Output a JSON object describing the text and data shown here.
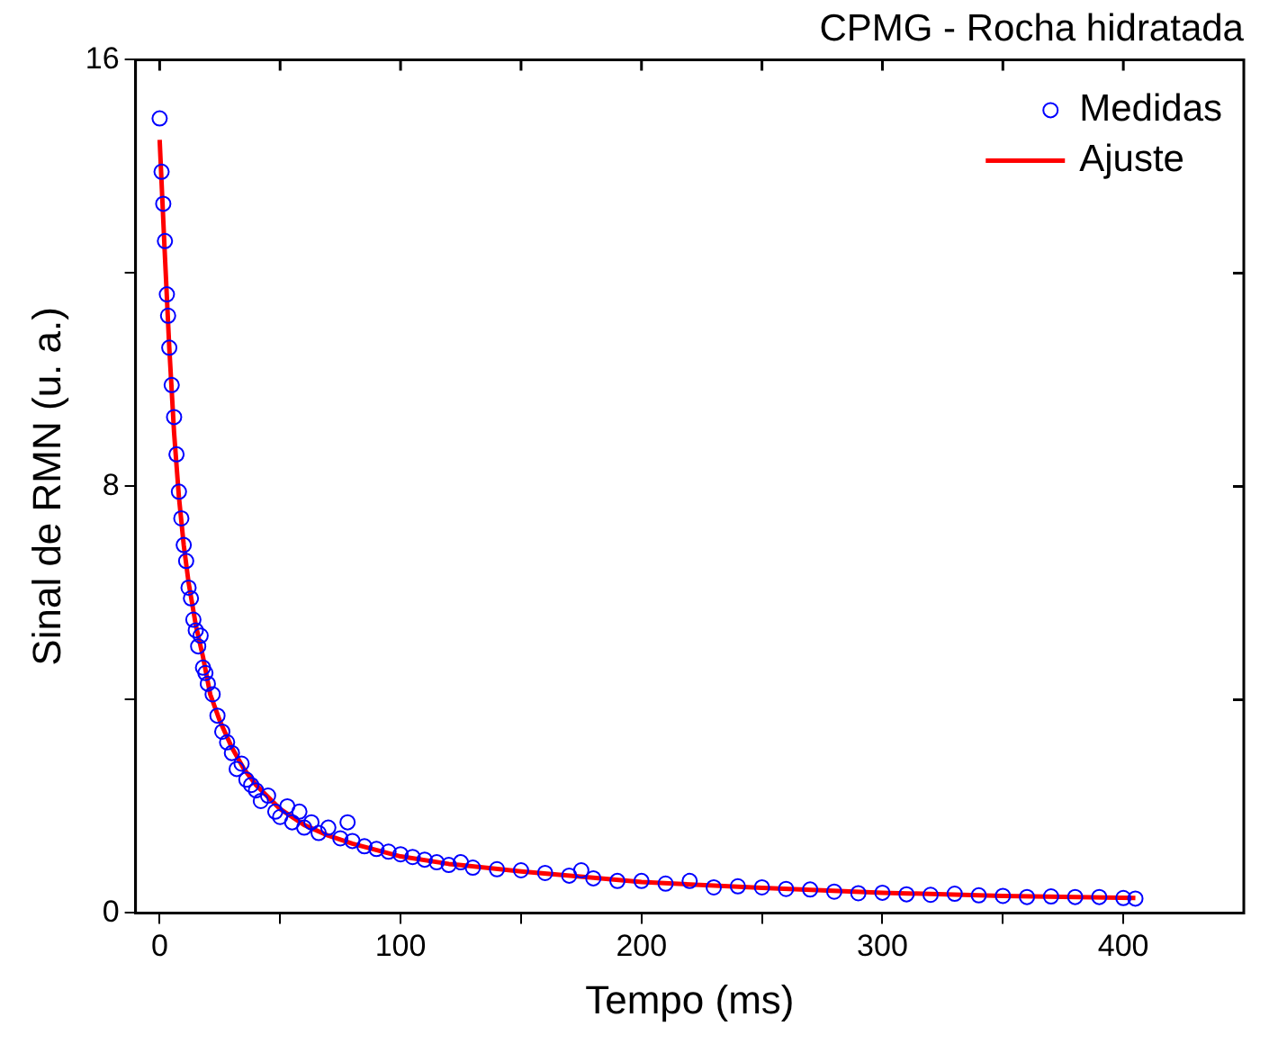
{
  "chart_data": {
    "type": "scatter",
    "title": "CPMG - Rocha hidratada",
    "xlabel": "Tempo (ms)",
    "ylabel": "Sinal de RMN (u. a.)",
    "xlim": [
      -10,
      450
    ],
    "xticks": [
      0,
      {
        "value": 50,
        "label": null
      },
      100,
      {
        "value": 150,
        "label": null
      },
      200,
      {
        "value": 250,
        "label": null
      },
      300,
      {
        "value": 350,
        "label": null
      },
      400
    ],
    "ylim": [
      0,
      16
    ],
    "yticks": [
      0,
      {
        "value": 4,
        "label": null
      },
      8,
      {
        "value": 12,
        "label": null
      },
      16
    ],
    "grid": false,
    "legend": "top right",
    "series": [
      {
        "name": "Medidas",
        "marker": "circle",
        "color": "#0000ff",
        "x": [
          0,
          0.8,
          1.5,
          2.2,
          3,
          3.5,
          4,
          5,
          6,
          7,
          8,
          9,
          10,
          11,
          12,
          13,
          14,
          15,
          16,
          17,
          18,
          19,
          20,
          22,
          24,
          26,
          28,
          30,
          32,
          34,
          36,
          38,
          40,
          42,
          45,
          48,
          50,
          53,
          55,
          58,
          60,
          63,
          66,
          70,
          75,
          78,
          80,
          85,
          90,
          95,
          100,
          105,
          110,
          115,
          120,
          125,
          130,
          140,
          150,
          160,
          170,
          175,
          180,
          190,
          200,
          210,
          220,
          230,
          240,
          250,
          260,
          270,
          280,
          290,
          300,
          310,
          320,
          330,
          340,
          350,
          360,
          370,
          380,
          390,
          400,
          405
        ],
        "values": [
          14.9,
          13.9,
          13.3,
          12.6,
          11.6,
          11.2,
          10.6,
          9.9,
          9.3,
          8.6,
          7.9,
          7.4,
          6.9,
          6.6,
          6.1,
          5.9,
          5.5,
          5.3,
          5.0,
          5.2,
          4.6,
          4.5,
          4.3,
          4.1,
          3.7,
          3.4,
          3.2,
          3.0,
          2.7,
          2.8,
          2.5,
          2.4,
          2.3,
          2.1,
          2.2,
          1.9,
          1.8,
          2.0,
          1.7,
          1.9,
          1.6,
          1.7,
          1.5,
          1.6,
          1.4,
          1.7,
          1.35,
          1.25,
          1.2,
          1.15,
          1.1,
          1.05,
          1.0,
          0.95,
          0.9,
          0.95,
          0.85,
          0.82,
          0.8,
          0.75,
          0.7,
          0.8,
          0.65,
          0.6,
          0.6,
          0.55,
          0.6,
          0.48,
          0.5,
          0.48,
          0.45,
          0.44,
          0.4,
          0.37,
          0.38,
          0.35,
          0.34,
          0.36,
          0.33,
          0.32,
          0.3,
          0.31,
          0.3,
          0.3,
          0.28,
          0.27
        ]
      },
      {
        "name": "Ajuste",
        "type": "line",
        "marker": "none",
        "line_style": "solid",
        "color": "#ff0000",
        "x": [
          0,
          2,
          4,
          6,
          8,
          10,
          12,
          15,
          18,
          21,
          25,
          30,
          35,
          40,
          50,
          60,
          70,
          80,
          100,
          120,
          150,
          180,
          200,
          250,
          300,
          350,
          405
        ],
        "values": [
          14.5,
          12.5,
          10.6,
          9.0,
          7.8,
          6.9,
          6.2,
          5.4,
          4.8,
          4.1,
          3.6,
          3.1,
          2.7,
          2.4,
          1.95,
          1.65,
          1.45,
          1.3,
          1.06,
          0.92,
          0.78,
          0.66,
          0.58,
          0.47,
          0.38,
          0.32,
          0.28
        ]
      }
    ]
  }
}
